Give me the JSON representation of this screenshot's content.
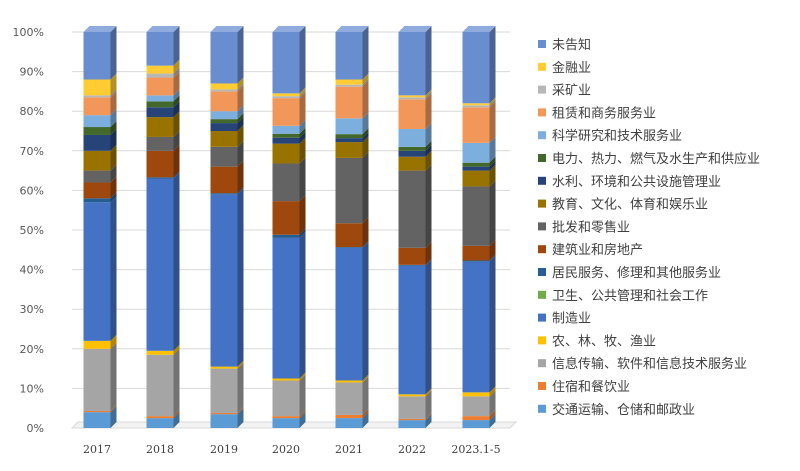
{
  "chart_data": {
    "type": "bar",
    "stacked": "percent",
    "style": "3d-column",
    "categories": [
      "2017",
      "2018",
      "2019",
      "2020",
      "2021",
      "2022",
      "2023.1-5"
    ],
    "y_ticks": [
      "0%",
      "10%",
      "20%",
      "30%",
      "40%",
      "50%",
      "60%",
      "70%",
      "80%",
      "90%",
      "100%"
    ],
    "ylim": [
      0,
      100
    ],
    "legend_position": "right",
    "series": [
      {
        "name": "交通运输、仓储和邮政业",
        "color": "#5b9bd5",
        "values": [
          4.0,
          2.5,
          3.5,
          2.5,
          2.5,
          2.0,
          2.0
        ]
      },
      {
        "name": "住宿和餐饮业",
        "color": "#ed7d31",
        "values": [
          0.3,
          0.5,
          0.3,
          0.5,
          0.8,
          0.3,
          1.0
        ]
      },
      {
        "name": "信息传输、软件和信息技术服务业",
        "color": "#a5a5a5",
        "values": [
          15.7,
          15.5,
          11.2,
          9.0,
          8.2,
          5.7,
          5.0
        ]
      },
      {
        "name": "农、林、牧、渔业",
        "color": "#ffc000",
        "values": [
          2.0,
          1.0,
          0.5,
          0.5,
          0.5,
          0.5,
          1.0
        ]
      },
      {
        "name": "制造业",
        "color": "#4472c4",
        "values": [
          35.0,
          43.5,
          43.5,
          35.5,
          33.5,
          32.5,
          33.0
        ]
      },
      {
        "name": "卫生、公共管理和社会工作",
        "color": "#70ad47",
        "values": [
          0.0,
          0.0,
          0.0,
          0.0,
          0.0,
          0.0,
          0.0
        ]
      },
      {
        "name": "居民服务、修理和其他服务业",
        "color": "#255e91",
        "values": [
          1.0,
          0.3,
          0.3,
          0.8,
          0.2,
          0.2,
          0.3
        ]
      },
      {
        "name": "建筑业和房地产",
        "color": "#9e480e",
        "values": [
          4.0,
          6.7,
          6.7,
          8.5,
          6.0,
          4.3,
          3.7
        ]
      },
      {
        "name": "批发和零售业",
        "color": "#636363",
        "values": [
          3.0,
          3.5,
          5.0,
          9.5,
          16.5,
          19.5,
          15.0
        ]
      },
      {
        "name": "教育、文化、体育和娱乐业",
        "color": "#997300",
        "values": [
          5.0,
          5.0,
          4.0,
          5.0,
          4.0,
          3.5,
          4.0
        ]
      },
      {
        "name": "水利、环境和公共设施管理业",
        "color": "#264478",
        "values": [
          4.0,
          2.5,
          2.0,
          1.5,
          1.0,
          1.5,
          1.0
        ]
      },
      {
        "name": "电力、热力、燃气及水生产和供应业",
        "color": "#43682b",
        "values": [
          2.0,
          1.5,
          1.0,
          1.0,
          1.0,
          1.0,
          1.0
        ]
      },
      {
        "name": "科学研究和技术服务业",
        "color": "#7cafdd",
        "values": [
          3.0,
          1.5,
          2.0,
          2.0,
          4.0,
          4.5,
          5.0
        ]
      },
      {
        "name": "租赁和商务服务业",
        "color": "#f1975a",
        "values": [
          4.5,
          4.5,
          5.0,
          7.0,
          8.0,
          7.5,
          9.0
        ]
      },
      {
        "name": "采矿业",
        "color": "#b7b7b7",
        "values": [
          0.5,
          1.0,
          0.5,
          0.5,
          0.5,
          0.5,
          0.5
        ]
      },
      {
        "name": "金融业",
        "color": "#ffcd33",
        "values": [
          4.0,
          2.0,
          1.5,
          0.7,
          1.3,
          0.5,
          0.5
        ]
      },
      {
        "name": "未告知",
        "color": "#698ed0",
        "values": [
          12.0,
          8.5,
          13.0,
          15.5,
          12.0,
          16.0,
          18.0
        ]
      }
    ]
  }
}
